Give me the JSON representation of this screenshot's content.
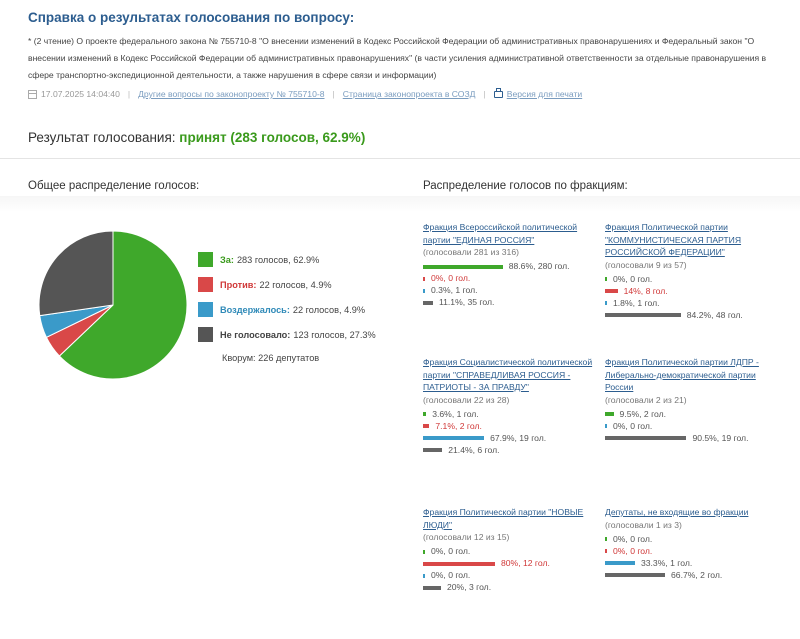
{
  "title": "Справка о результатах голосования по вопросу:",
  "description": "* (2 чтение) О проекте федерального закона № 755710-8 \"О внесении изменений в Кодекс Российской Федерации об административных правонарушениях и Федеральный закон \"О внесении изменений в Кодекс Российской Федерации об административных правонарушениях\" (в части усиления административной ответственности за отдельные правонарушения в сфере транспортно-экспедиционной деятельности, а также нарушения в сфере связи и информации)",
  "meta": {
    "date": "17.07.2025 14:04:40",
    "other_votes_link": "Другие вопросы по законопроекту № 755710-8",
    "sozd_link": "Страница законопроекта в СОЗД",
    "print_link": "Версия для печати"
  },
  "result": {
    "label": "Результат голосования:",
    "value": "принят (283 голосов, 62.9%)"
  },
  "section_left": "Общее распределение голосов:",
  "section_right": "Распределение голосов по фракциям:",
  "pie": [
    {
      "key": "for",
      "label": "За:",
      "text": "283 голосов, 62.9%",
      "value": 62.9,
      "color": "#3fa82b",
      "label_color": "#3a9a1c"
    },
    {
      "key": "against",
      "label": "Против:",
      "text": "22 голосов, 4.9%",
      "value": 4.9,
      "color": "#d94848",
      "label_color": "#d03838"
    },
    {
      "key": "abstain",
      "label": "Воздержалось:",
      "text": "22 голосов, 4.9%",
      "value": 4.9,
      "color": "#3a9ac9",
      "label_color": "#2f8ab8"
    },
    {
      "key": "absent",
      "label": "Не голосовало:",
      "text": "123 голосов, 27.3%",
      "value": 27.3,
      "color": "#555555",
      "label_color": "#444444"
    }
  ],
  "quorum": "Кворум: 226 депутатов",
  "factions": [
    {
      "name": "Фракция Всероссийской политической партии \"ЕДИНАЯ РОССИЯ\"",
      "voted": "(голосовали 281 из 316)",
      "rows": [
        {
          "type": "g",
          "pct": 88.6,
          "text": "88.6%, 280 гол."
        },
        {
          "type": "r",
          "pct": 0,
          "text": "0%, 0 гол."
        },
        {
          "type": "b",
          "pct": 0.3,
          "text": "0.3%, 1 гол."
        },
        {
          "type": "d",
          "pct": 11.1,
          "text": "11.1%, 35 гол."
        }
      ]
    },
    {
      "name": "Фракция Политической партии \"КОММУНИСТИЧЕСКАЯ ПАРТИЯ РОССИЙСКОЙ ФЕДЕРАЦИИ\"",
      "voted": "(голосовали 9 из 57)",
      "rows": [
        {
          "type": "g",
          "pct": 0,
          "text": "0%, 0 гол."
        },
        {
          "type": "r",
          "pct": 14,
          "text": "14%, 8 гол."
        },
        {
          "type": "b",
          "pct": 1.8,
          "text": "1.8%, 1 гол."
        },
        {
          "type": "d",
          "pct": 84.2,
          "text": "84.2%, 48 гол."
        }
      ]
    },
    {
      "name": "Фракция Социалистической политической партии \"СПРАВЕДЛИВАЯ РОССИЯ - ПАТРИОТЫ - ЗА ПРАВДУ\"",
      "voted": "(голосовали 22 из 28)",
      "rows": [
        {
          "type": "g",
          "pct": 3.6,
          "text": "3.6%, 1 гол."
        },
        {
          "type": "r",
          "pct": 7.1,
          "text": "7.1%, 2 гол."
        },
        {
          "type": "b",
          "pct": 67.9,
          "text": "67.9%, 19 гол."
        },
        {
          "type": "d",
          "pct": 21.4,
          "text": "21.4%, 6 гол."
        }
      ]
    },
    {
      "name": "Фракция Политической партии ЛДПР - Либерально-демократической партии России",
      "voted": "(голосовали 2 из 21)",
      "rows": [
        {
          "type": "g",
          "pct": 9.5,
          "text": "9.5%, 2 гол."
        },
        {
          "type": "b",
          "pct": 0,
          "text": "0%, 0 гол."
        },
        {
          "type": "d",
          "pct": 90.5,
          "text": "90.5%, 19 гол."
        }
      ]
    },
    {
      "name": "Фракция Политической партии \"НОВЫЕ ЛЮДИ\"",
      "voted": "(голосовали 12 из 15)",
      "rows": [
        {
          "type": "g",
          "pct": 0,
          "text": "0%, 0 гол."
        },
        {
          "type": "r",
          "pct": 80,
          "text": "80%, 12 гол."
        },
        {
          "type": "b",
          "pct": 0,
          "text": "0%, 0 гол."
        },
        {
          "type": "d",
          "pct": 20,
          "text": "20%, 3 гол."
        }
      ]
    },
    {
      "name": "Депутаты, не входящие во фракции",
      "voted": "(голосовали 1 из 3)",
      "rows": [
        {
          "type": "g",
          "pct": 0,
          "text": "0%, 0 гол."
        },
        {
          "type": "r",
          "pct": 0,
          "text": "0%, 0 гол."
        },
        {
          "type": "b",
          "pct": 33.3,
          "text": "33.3%, 1 гол."
        },
        {
          "type": "d",
          "pct": 66.7,
          "text": "66.7%, 2 гол."
        }
      ]
    }
  ]
}
